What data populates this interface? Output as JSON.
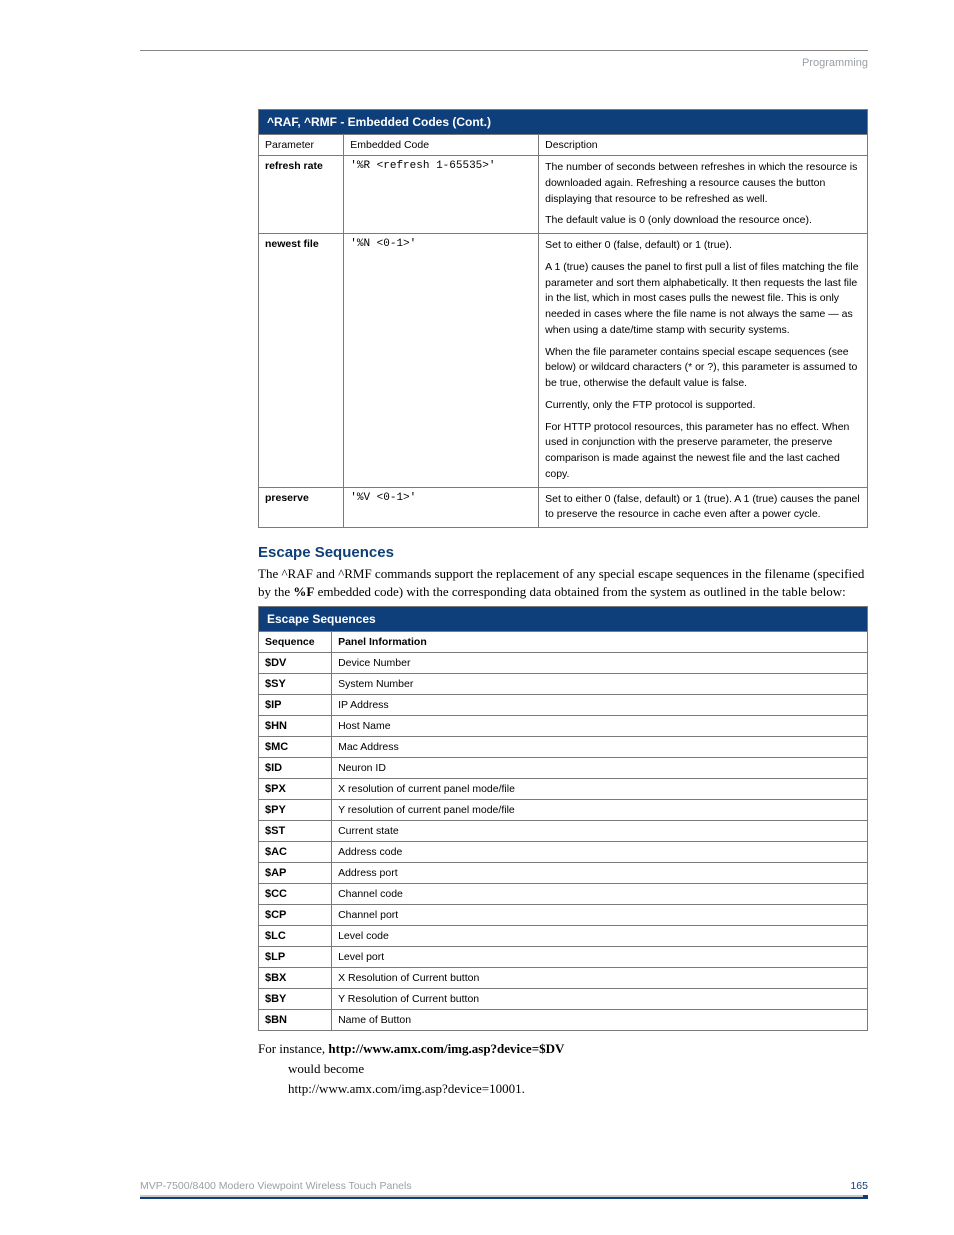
{
  "header": {
    "crumb": "Programming"
  },
  "codes_table": {
    "title": "^RAF, ^RMF - Embedded Codes (Cont.)",
    "subheaders": [
      "Parameter",
      "Embedded Code",
      "Description"
    ],
    "rows": [
      {
        "param": "refresh rate",
        "code": "'%R <refresh 1-65535>'",
        "desc": [
          "The number of seconds between refreshes in which the resource is downloaded again. Refreshing a resource causes the button displaying that resource to be refreshed as well.",
          "The default value is 0 (only download the resource once)."
        ]
      },
      {
        "param": "newest file",
        "code": "'%N <0-1>'",
        "desc": [
          "Set to either 0 (false, default) or 1 (true).",
          "A 1 (true) causes the panel to first pull a list of files matching the file parameter and sort them alphabetically. It then requests the last file in the list, which in most cases pulls the newest file. This is only needed in cases where the file name is not always the same — as when using a date/time stamp with security systems.",
          "When the file parameter contains special escape sequences (see below) or wildcard characters (* or ?), this parameter is assumed to be true, otherwise the default value is false.",
          "Currently, only the FTP protocol is supported.",
          "For HTTP protocol resources, this parameter has no effect. When used in conjunction with the preserve parameter, the preserve comparison is made against the newest file and the last cached copy."
        ]
      },
      {
        "param": "preserve",
        "code": "'%V <0-1>'",
        "desc": [
          "Set to either 0 (false, default) or 1 (true). A 1 (true) causes the panel to preserve the resource in cache even after a power cycle."
        ]
      }
    ]
  },
  "escape_section": {
    "heading": "Escape Sequences",
    "intro_pre": "The ^RAF and ^RMF commands support the replacement of any special escape sequences in the filename (specified by the ",
    "intro_bold": "%F",
    "intro_post": " embedded code) with the corresponding data obtained from the system as outlined in the table below:"
  },
  "escape_table": {
    "title": "Escape Sequences",
    "subheaders": [
      "Sequence",
      "Panel Information"
    ],
    "rows": [
      {
        "seq": "$DV",
        "desc": "Device Number"
      },
      {
        "seq": "$SY",
        "desc": "System Number"
      },
      {
        "seq": "$IP",
        "desc": "IP Address"
      },
      {
        "seq": "$HN",
        "desc": "Host Name"
      },
      {
        "seq": "$MC",
        "desc": "Mac Address"
      },
      {
        "seq": "$ID",
        "desc": "Neuron ID"
      },
      {
        "seq": "$PX",
        "desc": "X resolution of current panel mode/file"
      },
      {
        "seq": "$PY",
        "desc": "Y resolution of current panel mode/file"
      },
      {
        "seq": "$ST",
        "desc": "Current state"
      },
      {
        "seq": "$AC",
        "desc": "Address code"
      },
      {
        "seq": "$AP",
        "desc": "Address port"
      },
      {
        "seq": "$CC",
        "desc": "Channel code"
      },
      {
        "seq": "$CP",
        "desc": "Channel port"
      },
      {
        "seq": "$LC",
        "desc": "Level code"
      },
      {
        "seq": "$LP",
        "desc": "Level port"
      },
      {
        "seq": "$BX",
        "desc": "X Resolution of Current button"
      },
      {
        "seq": "$BY",
        "desc": "Y Resolution of Current button"
      },
      {
        "seq": "$BN",
        "desc": "Name of Button"
      }
    ]
  },
  "example": {
    "line1_pre": "For instance, ",
    "line1_bold": "http://www.amx.com/img.asp?device=$DV",
    "line2": "would become",
    "line3": "http://www.amx.com/img.asp?device=10001."
  },
  "footer": {
    "title": "MVP-7500/8400 Modero Viewpoint Wireless Touch Panels",
    "page": "165"
  }
}
